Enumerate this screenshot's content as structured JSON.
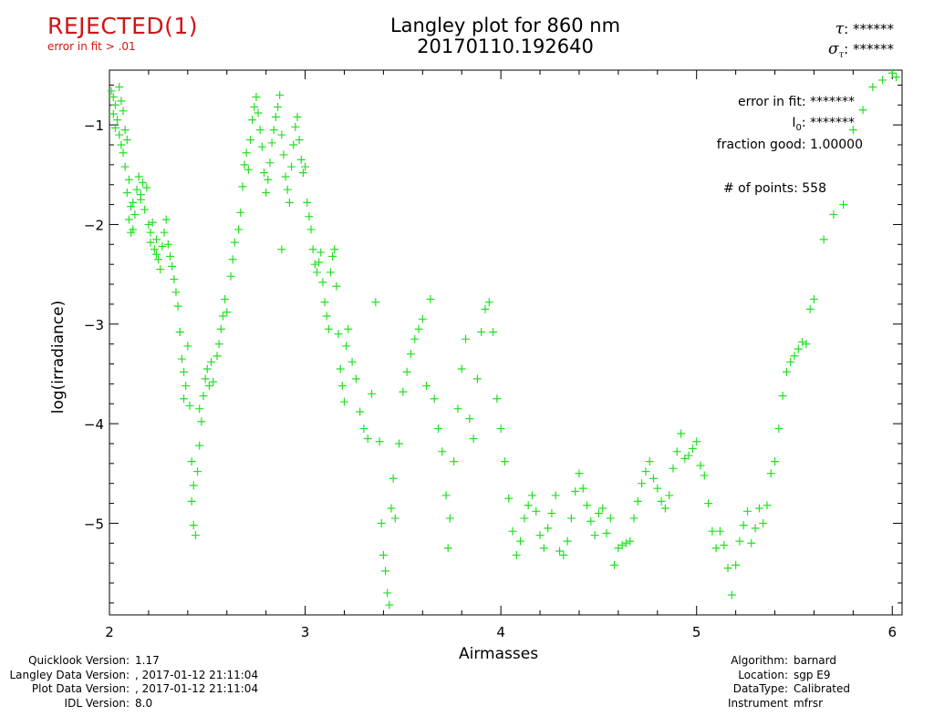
{
  "header": {
    "status": "REJECTED(1)",
    "status_detail": "error in fit > .01",
    "title_line1": "Langley plot for 860 nm",
    "title_line2": "20170110.192640",
    "tau_label": "τ",
    "tau_value": "******",
    "sigma_label": "σ",
    "sigma_sub": "τ",
    "sigma_value": "******"
  },
  "stats": {
    "error_in_fit_label": "error in fit:",
    "error_in_fit_value": "*******",
    "i0_label": "I",
    "i0_sub": "0",
    "i0_value": "*******",
    "fraction_good_label": "fraction good:",
    "fraction_good_value": "1.00000",
    "num_points_label": "# of points:",
    "num_points_value": "558"
  },
  "footer": {
    "left": [
      {
        "label": "Quicklook Version:",
        "value": "1.17"
      },
      {
        "label": "Langley Data Version:",
        "value": ", 2017-01-12 21:11:04"
      },
      {
        "label": "Plot Data Version:",
        "value": ", 2017-01-12 21:11:04"
      },
      {
        "label": "IDL Version:",
        "value": "8.0"
      }
    ],
    "right": [
      {
        "label": "Algorithm:",
        "value": "barnard"
      },
      {
        "label": "Location:",
        "value": "sgp E9"
      },
      {
        "label": "DataType:",
        "value": "Calibrated"
      },
      {
        "label": "Instrument",
        "value": "mfrsr"
      }
    ]
  },
  "colors": {
    "marker": "#22e022",
    "status": "#d21414",
    "axis": "#000000"
  },
  "chart_data": {
    "type": "scatter",
    "title": "Langley plot for 860 nm",
    "subtitle": "20170110.192640",
    "xlabel": "Airmasses",
    "ylabel": "log(irradiance)",
    "xlim": [
      2.0,
      6.05
    ],
    "ylim": [
      -5.92,
      -0.45
    ],
    "x_ticks": [
      2,
      3,
      4,
      5,
      6
    ],
    "y_ticks": [
      -1,
      -2,
      -3,
      -4,
      -5
    ],
    "x_tick_labels": [
      "2",
      "3",
      "4",
      "5",
      "6"
    ],
    "y_tick_labels": [
      "−1",
      "−2",
      "−3",
      "−4",
      "−5"
    ],
    "marker": "+",
    "grid": false,
    "series": [
      {
        "points": [
          [
            2.01,
            -0.66
          ],
          [
            2.02,
            -0.72
          ],
          [
            2.03,
            -0.8
          ],
          [
            2.02,
            -0.89
          ],
          [
            2.04,
            -0.95
          ],
          [
            2.05,
            -0.62
          ],
          [
            2.03,
            -1.03
          ],
          [
            2.06,
            -0.76
          ],
          [
            2.05,
            -1.1
          ],
          [
            2.07,
            -0.86
          ],
          [
            2.06,
            -1.2
          ],
          [
            2.08,
            -1.05
          ],
          [
            2.07,
            -1.28
          ],
          [
            2.09,
            -1.15
          ],
          [
            2.08,
            -1.42
          ],
          [
            2.1,
            -1.55
          ],
          [
            2.09,
            -1.68
          ],
          [
            2.11,
            -1.82
          ],
          [
            2.1,
            -1.95
          ],
          [
            2.12,
            -2.05
          ],
          [
            2.11,
            -2.08
          ],
          [
            2.13,
            -1.9
          ],
          [
            2.12,
            -1.78
          ],
          [
            2.14,
            -1.65
          ],
          [
            2.15,
            -1.52
          ],
          [
            2.16,
            -1.7
          ],
          [
            2.17,
            -1.58
          ],
          [
            2.18,
            -1.85
          ],
          [
            2.16,
            -1.75
          ],
          [
            2.19,
            -1.63
          ],
          [
            2.2,
            -2.0
          ],
          [
            2.21,
            -2.08
          ],
          [
            2.22,
            -1.98
          ],
          [
            2.21,
            -2.18
          ],
          [
            2.23,
            -2.25
          ],
          [
            2.24,
            -2.15
          ],
          [
            2.25,
            -2.35
          ],
          [
            2.26,
            -2.45
          ],
          [
            2.24,
            -2.3
          ],
          [
            2.27,
            -2.22
          ],
          [
            2.28,
            -2.08
          ],
          [
            2.29,
            -1.95
          ],
          [
            2.3,
            -2.2
          ],
          [
            2.31,
            -2.32
          ],
          [
            2.32,
            -2.42
          ],
          [
            2.33,
            -2.55
          ],
          [
            2.34,
            -2.68
          ],
          [
            2.35,
            -2.82
          ],
          [
            2.36,
            -3.08
          ],
          [
            2.37,
            -3.35
          ],
          [
            2.38,
            -3.48
          ],
          [
            2.39,
            -3.62
          ],
          [
            2.38,
            -3.75
          ],
          [
            2.4,
            -3.22
          ],
          [
            2.41,
            -3.82
          ],
          [
            2.42,
            -4.38
          ],
          [
            2.43,
            -4.62
          ],
          [
            2.42,
            -4.78
          ],
          [
            2.43,
            -5.02
          ],
          [
            2.44,
            -5.12
          ],
          [
            2.45,
            -4.48
          ],
          [
            2.46,
            -4.22
          ],
          [
            2.47,
            -3.98
          ],
          [
            2.46,
            -3.85
          ],
          [
            2.48,
            -3.72
          ],
          [
            2.49,
            -3.55
          ],
          [
            2.5,
            -3.45
          ],
          [
            2.51,
            -3.62
          ],
          [
            2.52,
            -3.38
          ],
          [
            2.53,
            -3.58
          ],
          [
            2.55,
            -3.32
          ],
          [
            2.56,
            -3.2
          ],
          [
            2.57,
            -3.05
          ],
          [
            2.58,
            -2.92
          ],
          [
            2.59,
            -2.75
          ],
          [
            2.6,
            -2.88
          ],
          [
            2.62,
            -2.52
          ],
          [
            2.63,
            -2.35
          ],
          [
            2.64,
            -2.18
          ],
          [
            2.66,
            -2.05
          ],
          [
            2.67,
            -1.88
          ],
          [
            2.68,
            -1.62
          ],
          [
            2.69,
            -1.4
          ],
          [
            2.7,
            -1.28
          ],
          [
            2.71,
            -1.45
          ],
          [
            2.72,
            -1.15
          ],
          [
            2.73,
            -0.95
          ],
          [
            2.74,
            -0.82
          ],
          [
            2.75,
            -0.72
          ],
          [
            2.76,
            -0.88
          ],
          [
            2.77,
            -1.05
          ],
          [
            2.78,
            -1.22
          ],
          [
            2.79,
            -1.48
          ],
          [
            2.8,
            -1.68
          ],
          [
            2.81,
            -1.55
          ],
          [
            2.82,
            -1.38
          ],
          [
            2.83,
            -1.18
          ],
          [
            2.84,
            -1.05
          ],
          [
            2.85,
            -0.92
          ],
          [
            2.86,
            -0.82
          ],
          [
            2.87,
            -0.7
          ],
          [
            2.88,
            -1.1
          ],
          [
            2.89,
            -1.3
          ],
          [
            2.9,
            -1.52
          ],
          [
            2.91,
            -1.65
          ],
          [
            2.92,
            -1.78
          ],
          [
            2.88,
            -2.25
          ],
          [
            2.93,
            -1.42
          ],
          [
            2.94,
            -1.2
          ],
          [
            2.95,
            -1.02
          ],
          [
            2.96,
            -0.92
          ],
          [
            2.97,
            -1.15
          ],
          [
            2.98,
            -1.35
          ],
          [
            2.99,
            -1.48
          ],
          [
            3.0,
            -1.42
          ],
          [
            3.01,
            -1.78
          ],
          [
            3.02,
            -1.92
          ],
          [
            3.03,
            -2.05
          ],
          [
            3.04,
            -2.25
          ],
          [
            3.05,
            -2.4
          ],
          [
            3.06,
            -2.48
          ],
          [
            3.07,
            -2.38
          ],
          [
            3.08,
            -2.28
          ],
          [
            3.09,
            -2.58
          ],
          [
            3.1,
            -2.78
          ],
          [
            3.11,
            -2.92
          ],
          [
            3.12,
            -3.05
          ],
          [
            3.13,
            -2.48
          ],
          [
            3.14,
            -2.32
          ],
          [
            3.15,
            -2.25
          ],
          [
            3.16,
            -2.62
          ],
          [
            3.17,
            -3.1
          ],
          [
            3.18,
            -3.45
          ],
          [
            3.19,
            -3.62
          ],
          [
            3.2,
            -3.78
          ],
          [
            3.21,
            -3.22
          ],
          [
            3.22,
            -3.05
          ],
          [
            3.24,
            -3.38
          ],
          [
            3.26,
            -3.55
          ],
          [
            3.28,
            -3.88
          ],
          [
            3.3,
            -4.05
          ],
          [
            3.32,
            -4.15
          ],
          [
            3.34,
            -3.7
          ],
          [
            3.36,
            -2.78
          ],
          [
            3.38,
            -4.18
          ],
          [
            3.39,
            -5.0
          ],
          [
            3.4,
            -5.32
          ],
          [
            3.41,
            -5.48
          ],
          [
            3.42,
            -5.7
          ],
          [
            3.43,
            -5.82
          ],
          [
            3.44,
            -4.85
          ],
          [
            3.45,
            -4.55
          ],
          [
            3.46,
            -4.95
          ],
          [
            3.48,
            -4.2
          ],
          [
            3.5,
            -3.68
          ],
          [
            3.52,
            -3.48
          ],
          [
            3.54,
            -3.3
          ],
          [
            3.56,
            -3.15
          ],
          [
            3.58,
            -3.05
          ],
          [
            3.6,
            -2.95
          ],
          [
            3.62,
            -3.62
          ],
          [
            3.64,
            -2.75
          ],
          [
            3.66,
            -3.75
          ],
          [
            3.68,
            -4.05
          ],
          [
            3.7,
            -4.28
          ],
          [
            3.72,
            -4.72
          ],
          [
            3.73,
            -5.25
          ],
          [
            3.74,
            -4.95
          ],
          [
            3.76,
            -4.38
          ],
          [
            3.78,
            -3.85
          ],
          [
            3.8,
            -3.45
          ],
          [
            3.82,
            -3.15
          ],
          [
            3.84,
            -3.95
          ],
          [
            3.86,
            -4.15
          ],
          [
            3.88,
            -3.55
          ],
          [
            3.9,
            -3.08
          ],
          [
            3.92,
            -2.85
          ],
          [
            3.94,
            -2.78
          ],
          [
            3.96,
            -3.08
          ],
          [
            3.98,
            -3.75
          ],
          [
            4.0,
            -4.05
          ],
          [
            4.02,
            -4.38
          ],
          [
            4.04,
            -4.75
          ],
          [
            4.06,
            -5.08
          ],
          [
            4.08,
            -5.32
          ],
          [
            4.1,
            -5.18
          ],
          [
            4.12,
            -4.95
          ],
          [
            4.14,
            -4.82
          ],
          [
            4.16,
            -4.72
          ],
          [
            4.18,
            -4.88
          ],
          [
            4.2,
            -5.12
          ],
          [
            4.22,
            -5.25
          ],
          [
            4.24,
            -5.05
          ],
          [
            4.26,
            -4.9
          ],
          [
            4.28,
            -4.72
          ],
          [
            4.3,
            -5.28
          ],
          [
            4.32,
            -5.32
          ],
          [
            4.34,
            -5.18
          ],
          [
            4.36,
            -4.95
          ],
          [
            4.38,
            -4.68
          ],
          [
            4.4,
            -4.5
          ],
          [
            4.42,
            -4.65
          ],
          [
            4.44,
            -4.82
          ],
          [
            4.46,
            -4.98
          ],
          [
            4.48,
            -5.12
          ],
          [
            4.5,
            -4.9
          ],
          [
            4.52,
            -4.85
          ],
          [
            4.54,
            -5.1
          ],
          [
            4.56,
            -4.95
          ],
          [
            4.58,
            -5.42
          ],
          [
            4.6,
            -5.25
          ],
          [
            4.62,
            -5.22
          ],
          [
            4.64,
            -5.2
          ],
          [
            4.66,
            -5.18
          ],
          [
            4.68,
            -4.95
          ],
          [
            4.7,
            -4.78
          ],
          [
            4.72,
            -4.6
          ],
          [
            4.74,
            -4.48
          ],
          [
            4.76,
            -4.38
          ],
          [
            4.78,
            -4.55
          ],
          [
            4.8,
            -4.65
          ],
          [
            4.82,
            -4.78
          ],
          [
            4.84,
            -4.85
          ],
          [
            4.86,
            -4.72
          ],
          [
            4.88,
            -4.45
          ],
          [
            4.9,
            -4.28
          ],
          [
            4.92,
            -4.1
          ],
          [
            4.94,
            -4.35
          ],
          [
            4.96,
            -4.32
          ],
          [
            4.98,
            -4.25
          ],
          [
            5.0,
            -4.18
          ],
          [
            5.02,
            -4.42
          ],
          [
            5.04,
            -4.52
          ],
          [
            5.06,
            -4.8
          ],
          [
            5.08,
            -5.08
          ],
          [
            5.1,
            -5.25
          ],
          [
            5.12,
            -5.08
          ],
          [
            5.14,
            -5.22
          ],
          [
            5.16,
            -5.45
          ],
          [
            5.18,
            -5.72
          ],
          [
            5.2,
            -5.42
          ],
          [
            5.22,
            -5.18
          ],
          [
            5.24,
            -5.02
          ],
          [
            5.26,
            -4.88
          ],
          [
            5.28,
            -5.2
          ],
          [
            5.3,
            -5.05
          ],
          [
            5.32,
            -4.85
          ],
          [
            5.34,
            -5.0
          ],
          [
            5.36,
            -4.82
          ],
          [
            5.38,
            -4.5
          ],
          [
            5.4,
            -4.38
          ],
          [
            5.42,
            -4.05
          ],
          [
            5.44,
            -3.72
          ],
          [
            5.46,
            -3.48
          ],
          [
            5.48,
            -3.38
          ],
          [
            5.5,
            -3.32
          ],
          [
            5.52,
            -3.25
          ],
          [
            5.54,
            -3.18
          ],
          [
            5.56,
            -3.2
          ],
          [
            5.58,
            -2.85
          ],
          [
            5.6,
            -2.75
          ],
          [
            5.65,
            -2.15
          ],
          [
            5.7,
            -1.9
          ],
          [
            5.75,
            -1.8
          ],
          [
            5.8,
            -1.05
          ],
          [
            5.85,
            -0.85
          ],
          [
            5.9,
            -0.62
          ],
          [
            5.95,
            -0.55
          ],
          [
            6.0,
            -0.48
          ],
          [
            6.02,
            -0.52
          ]
        ]
      }
    ]
  }
}
